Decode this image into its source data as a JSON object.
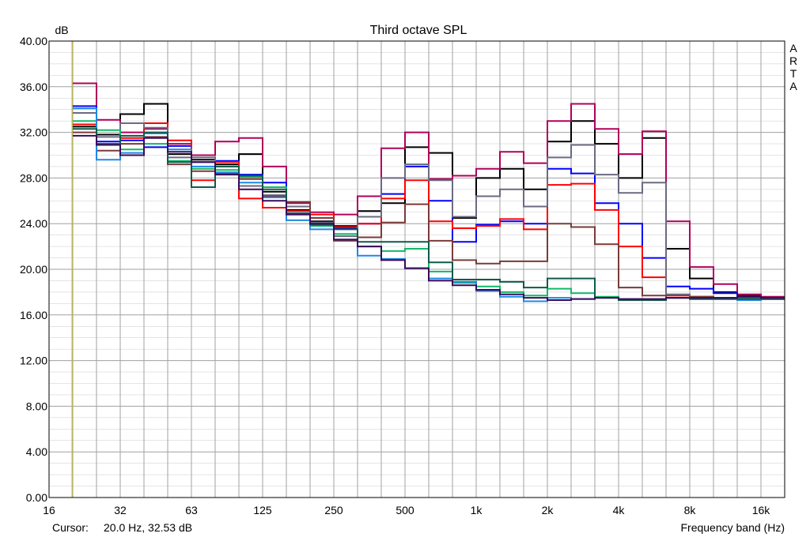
{
  "chart_data": {
    "type": "line",
    "title": "Third octave SPL",
    "ylabel": "dB",
    "xlabel": "Frequency band (Hz)",
    "side_label": [
      "A",
      "R",
      "T",
      "A"
    ],
    "cursor": {
      "label": "Cursor:",
      "value": "20.0 Hz, 32.53 dB",
      "x": 20
    },
    "ylim": [
      0,
      40
    ],
    "y_ticks": [
      "0.00",
      "4.00",
      "8.00",
      "12.00",
      "16.00",
      "20.00",
      "24.00",
      "28.00",
      "32.00",
      "36.00",
      "40.00"
    ],
    "x_tick_labels": [
      "16",
      "32",
      "63",
      "125",
      "250",
      "500",
      "1k",
      "2k",
      "4k",
      "8k",
      "16k"
    ],
    "bands": [
      "16",
      "20",
      "25",
      "31.5",
      "40",
      "50",
      "63",
      "80",
      "100",
      "125",
      "160",
      "200",
      "250",
      "315",
      "400",
      "500",
      "630",
      "800",
      "1k",
      "1.25k",
      "1.6k",
      "2k",
      "2.5k",
      "3.15k",
      "4k",
      "5k",
      "6.3k",
      "8k",
      "10k",
      "12.5k",
      "16k",
      "20k"
    ],
    "grid": true,
    "colors": {
      "background": "#ffffff",
      "grid": "#a0a0a0",
      "cursor": "#d4c400"
    },
    "series": [
      {
        "color": "#000000",
        "values": [
          null,
          32.5,
          31.8,
          33.6,
          34.5,
          30.1,
          29.6,
          29.2,
          30.1,
          26.8,
          25.2,
          24.2,
          23.8,
          25.1,
          25.8,
          30.7,
          30.2,
          24.5,
          28.0,
          28.8,
          27.0,
          31.2,
          33.0,
          31.0,
          28.0,
          31.5,
          21.8,
          19.2,
          18.0,
          17.7,
          17.5,
          null
        ]
      },
      {
        "color": "#b0005a",
        "values": [
          null,
          36.3,
          33.1,
          32.0,
          32.3,
          31.0,
          30.0,
          31.2,
          31.5,
          29.0,
          25.8,
          25.0,
          24.8,
          26.4,
          30.6,
          32.0,
          27.9,
          28.2,
          28.8,
          30.3,
          29.3,
          33.0,
          34.5,
          32.3,
          30.1,
          32.1,
          24.2,
          20.2,
          18.7,
          17.8,
          17.6,
          null
        ]
      },
      {
        "color": "#0000ff",
        "values": [
          null,
          34.3,
          31.2,
          31.3,
          30.7,
          30.8,
          29.4,
          29.5,
          28.3,
          27.6,
          24.9,
          24.0,
          23.6,
          24.0,
          26.6,
          29.0,
          26.0,
          22.4,
          23.9,
          24.2,
          24.0,
          28.8,
          28.4,
          25.8,
          24.0,
          21.0,
          18.5,
          18.3,
          17.9,
          17.6,
          17.5,
          null
        ]
      },
      {
        "color": "#ff0000",
        "values": [
          null,
          32.7,
          30.9,
          31.5,
          32.8,
          31.3,
          27.8,
          29.4,
          26.2,
          25.4,
          25.1,
          24.8,
          23.7,
          24.0,
          26.2,
          27.8,
          24.2,
          23.6,
          23.8,
          24.4,
          23.5,
          27.4,
          27.5,
          25.2,
          22.0,
          19.3,
          17.7,
          17.6,
          17.5,
          17.5,
          17.4,
          null
        ]
      },
      {
        "color": "#6a6a82",
        "values": [
          null,
          33.7,
          31.6,
          32.8,
          32.4,
          29.8,
          29.8,
          29.0,
          27.3,
          26.5,
          25.5,
          24.1,
          22.9,
          24.6,
          28.0,
          29.2,
          27.8,
          24.6,
          26.4,
          27.0,
          25.5,
          29.8,
          30.9,
          28.3,
          26.7,
          27.6,
          17.8,
          17.6,
          17.5,
          17.5,
          17.4,
          null
        ]
      },
      {
        "color": "#7a3a3a",
        "values": [
          null,
          32.0,
          30.4,
          31.0,
          31.6,
          29.2,
          28.6,
          28.4,
          27.9,
          26.4,
          25.9,
          24.5,
          22.5,
          22.8,
          24.1,
          25.7,
          22.5,
          20.8,
          20.5,
          20.7,
          20.7,
          24.0,
          23.7,
          22.2,
          18.4,
          17.7,
          17.5,
          17.6,
          17.5,
          17.4,
          17.4,
          null
        ]
      },
      {
        "color": "#12b86a",
        "values": [
          null,
          33.0,
          32.2,
          30.5,
          31.0,
          29.5,
          28.8,
          28.7,
          28.1,
          27.2,
          24.8,
          23.8,
          23.1,
          22.0,
          21.6,
          21.8,
          19.8,
          18.8,
          18.5,
          18.0,
          17.7,
          18.3,
          17.9,
          17.6,
          17.3,
          17.3,
          17.5,
          17.4,
          17.4,
          17.4,
          17.4,
          null
        ]
      },
      {
        "color": "#1e88e5",
        "values": [
          null,
          34.1,
          29.6,
          30.2,
          31.9,
          30.5,
          29.0,
          28.5,
          27.6,
          26.3,
          24.3,
          23.5,
          22.6,
          21.2,
          20.9,
          20.1,
          19.2,
          18.9,
          18.1,
          17.6,
          17.2,
          17.5,
          17.4,
          17.5,
          17.3,
          17.3,
          17.5,
          17.4,
          17.4,
          17.3,
          17.4,
          null
        ]
      },
      {
        "color": "#0e5a4a",
        "values": [
          null,
          32.3,
          31.0,
          31.7,
          32.0,
          29.4,
          27.2,
          29.0,
          28.2,
          27.0,
          24.9,
          23.9,
          23.5,
          22.4,
          22.4,
          22.4,
          20.6,
          19.1,
          19.1,
          18.9,
          18.4,
          19.2,
          19.2,
          17.5,
          17.3,
          17.3,
          17.5,
          17.4,
          17.4,
          17.4,
          17.4,
          null
        ]
      },
      {
        "color": "#3a0a5a",
        "values": [
          null,
          31.7,
          30.9,
          30.0,
          31.5,
          30.3,
          29.4,
          28.3,
          27.0,
          26.0,
          24.8,
          24.0,
          22.6,
          22.0,
          20.8,
          20.1,
          19.0,
          18.6,
          18.2,
          17.8,
          17.5,
          17.3,
          17.4,
          17.5,
          17.4,
          17.4,
          17.5,
          17.5,
          17.5,
          17.6,
          17.5,
          null
        ]
      }
    ]
  }
}
